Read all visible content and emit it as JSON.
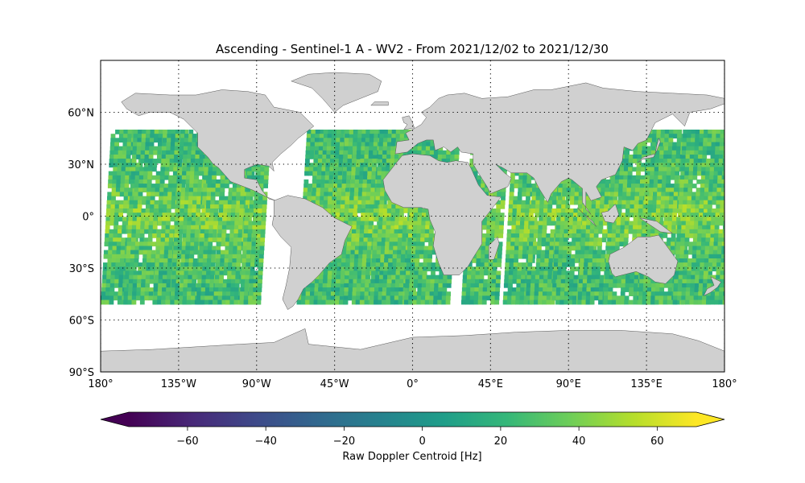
{
  "title": "Ascending - Sentinel-1 A - WV2 - From 2021/12/02 to 2021/12/30",
  "map": {
    "projection": "plate-carree",
    "lon_range": [
      -180,
      180
    ],
    "lat_range": [
      -90,
      90
    ],
    "land_color": "#d0d0d0",
    "coast_color": "#555555",
    "grid": "dotted",
    "x_ticks": [
      {
        "value": -180,
        "label": "180°"
      },
      {
        "value": -135,
        "label": "135°W"
      },
      {
        "value": -90,
        "label": "90°W"
      },
      {
        "value": -45,
        "label": "45°W"
      },
      {
        "value": 0,
        "label": "0°"
      },
      {
        "value": 45,
        "label": "45°E"
      },
      {
        "value": 90,
        "label": "90°E"
      },
      {
        "value": 135,
        "label": "135°E"
      },
      {
        "value": 180,
        "label": "180°"
      }
    ],
    "y_ticks": [
      {
        "value": 60,
        "label": "60°N"
      },
      {
        "value": 30,
        "label": "30°N"
      },
      {
        "value": 0,
        "label": "0°"
      },
      {
        "value": -30,
        "label": "30°S"
      },
      {
        "value": -60,
        "label": "60°S"
      },
      {
        "value": -90,
        "label": "90°S"
      }
    ],
    "data_lat_range": [
      -50,
      50
    ],
    "data_lon_bands": [
      [
        -180,
        -163
      ],
      [
        -167,
        -150
      ],
      [
        -150,
        -136
      ],
      [
        -140,
        -128
      ],
      [
        -133,
        -120
      ],
      [
        -125,
        -113
      ],
      [
        -115,
        -104
      ],
      [
        -108,
        -98
      ],
      [
        -100,
        -90
      ],
      [
        -95,
        -88
      ],
      [
        -67,
        -57
      ],
      [
        -62,
        -50
      ],
      [
        -55,
        -45
      ],
      [
        -50,
        -40
      ],
      [
        -45,
        -36
      ],
      [
        -40,
        -28
      ],
      [
        -33,
        -20
      ],
      [
        -25,
        -12
      ],
      [
        -18,
        0
      ],
      [
        -5,
        20
      ],
      [
        28,
        48
      ],
      [
        52,
        68
      ],
      [
        65,
        86
      ],
      [
        80,
        102
      ],
      [
        95,
        114
      ],
      [
        110,
        125
      ],
      [
        127,
        140
      ],
      [
        130,
        155
      ],
      [
        150,
        170
      ],
      [
        162,
        180
      ]
    ]
  },
  "colorbar": {
    "label": "Raw Doppler Centroid [Hz]",
    "colormap": "viridis",
    "range": [
      -75,
      70
    ],
    "extend": "both",
    "ticks": [
      {
        "value": -60,
        "label": "−60"
      },
      {
        "value": -40,
        "label": "−40"
      },
      {
        "value": -20,
        "label": "−20"
      },
      {
        "value": 0,
        "label": "0"
      },
      {
        "value": 20,
        "label": "20"
      },
      {
        "value": 40,
        "label": "40"
      },
      {
        "value": 60,
        "label": "60"
      }
    ],
    "stops": [
      "#440154",
      "#482878",
      "#3e4989",
      "#31688e",
      "#26828e",
      "#1f9e89",
      "#35b779",
      "#6ece58",
      "#b5de2b",
      "#fde725"
    ]
  }
}
